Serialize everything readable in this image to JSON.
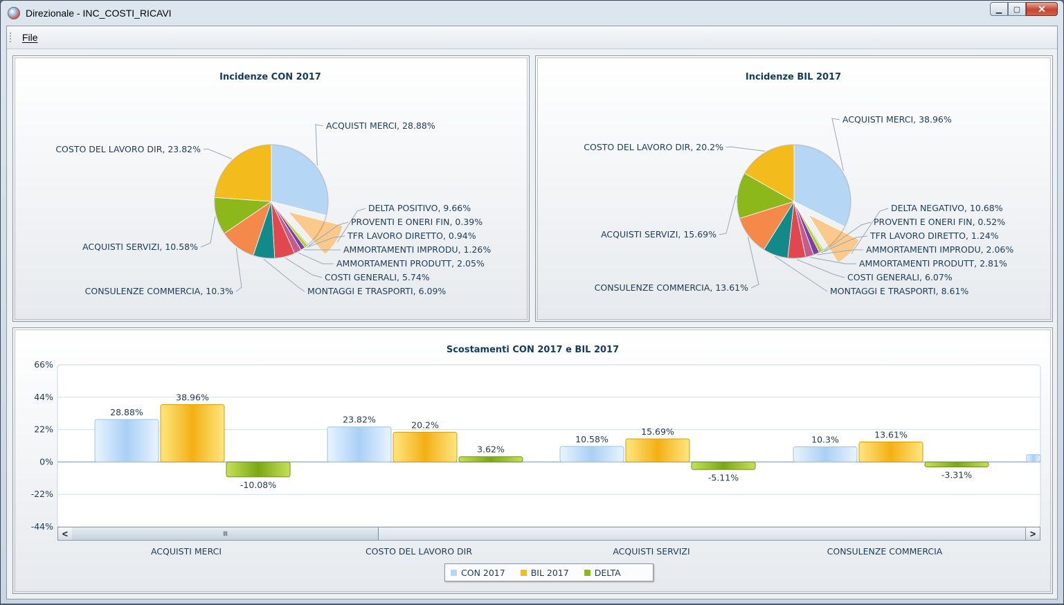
{
  "window": {
    "title": "Direzionale - INC_COSTI_RICAVI"
  },
  "menu": {
    "file": "File"
  },
  "pie_con": {
    "title": "Incidenze CON 2017",
    "slices": [
      {
        "label": "ACQUISTI MERCI, 28.88%",
        "value": 28.88,
        "color": "#b6d6f5"
      },
      {
        "label": "DELTA POSITIVO, 9.66%",
        "value": 9.66,
        "color": "#fcc98c"
      },
      {
        "label": "PROVENTI E ONERI FIN, 0.39%",
        "value": 0.39,
        "color": "#a9d08e"
      },
      {
        "label": "TFR LAVORO DIRETTO, 0.94%",
        "value": 0.94,
        "color": "#b6cf21"
      },
      {
        "label": "AMMORTAMENTI IMPRODU, 1.26%",
        "value": 1.26,
        "color": "#7b3fa8"
      },
      {
        "label": "AMMORTAMENTI PRODUTT, 2.05%",
        "value": 2.05,
        "color": "#c25c8a"
      },
      {
        "label": "COSTI GENERALI, 5.74%",
        "value": 5.74,
        "color": "#e0474e"
      },
      {
        "label": "MONTAGGI E TRASPORTI, 6.09%",
        "value": 6.09,
        "color": "#138a8a"
      },
      {
        "label": "CONSULENZE COMMERCIA, 10.3%",
        "value": 10.3,
        "color": "#f5894a"
      },
      {
        "label": "ACQUISTI SERVIZI, 10.58%",
        "value": 10.58,
        "color": "#8db81b"
      },
      {
        "label": "COSTO DEL LAVORO DIR, 23.82%",
        "value": 23.82,
        "color": "#f4bb1c"
      }
    ]
  },
  "pie_bil": {
    "title": "Incidenze BIL 2017",
    "slices": [
      {
        "label": "ACQUISTI MERCI, 38.96%",
        "value": 38.96,
        "color": "#b6d6f5"
      },
      {
        "label": "DELTA NEGATIVO, 10.68%",
        "value": 10.68,
        "color": "#fcc98c"
      },
      {
        "label": "PROVENTI E ONERI FIN, 0.52%",
        "value": 0.52,
        "color": "#a9d08e"
      },
      {
        "label": "TFR LAVORO DIRETTO, 1.24%",
        "value": 1.24,
        "color": "#b6cf21"
      },
      {
        "label": "AMMORTAMENTI IMPRODU, 2.06%",
        "value": 2.06,
        "color": "#7b3fa8"
      },
      {
        "label": "AMMORTAMENTI PRODUTT, 2.81%",
        "value": 2.81,
        "color": "#c25c8a"
      },
      {
        "label": "COSTI GENERALI, 6.07%",
        "value": 6.07,
        "color": "#e0474e"
      },
      {
        "label": "MONTAGGI E TRASPORTI, 8.61%",
        "value": 8.61,
        "color": "#138a8a"
      },
      {
        "label": "CONSULENZE COMMERCIA, 13.61%",
        "value": 13.61,
        "color": "#f5894a"
      },
      {
        "label": "ACQUISTI SERVIZI, 15.69%",
        "value": 15.69,
        "color": "#8db81b"
      },
      {
        "label": "COSTO DEL LAVORO DIR, 20.2%",
        "value": 20.2,
        "color": "#f4bb1c"
      }
    ]
  },
  "chart_data": [
    {
      "type": "pie",
      "title": "Incidenze CON 2017",
      "categories": [
        "ACQUISTI MERCI",
        "DELTA POSITIVO",
        "PROVENTI E ONERI FIN",
        "TFR LAVORO DIRETTO",
        "AMMORTAMENTI IMPRODU",
        "AMMORTAMENTI PRODUTT",
        "COSTI GENERALI",
        "MONTAGGI E TRASPORTI",
        "CONSULENZE COMMERCIA",
        "ACQUISTI SERVIZI",
        "COSTO DEL LAVORO DIR"
      ],
      "values": [
        28.88,
        9.66,
        0.39,
        0.94,
        1.26,
        2.05,
        5.74,
        6.09,
        10.3,
        10.58,
        23.82
      ]
    },
    {
      "type": "pie",
      "title": "Incidenze BIL 2017",
      "categories": [
        "ACQUISTI MERCI",
        "DELTA NEGATIVO",
        "PROVENTI E ONERI FIN",
        "TFR LAVORO DIRETTO",
        "AMMORTAMENTI IMPRODU",
        "AMMORTAMENTI PRODUTT",
        "COSTI GENERALI",
        "MONTAGGI E TRASPORTI",
        "CONSULENZE COMMERCIA",
        "ACQUISTI SERVIZI",
        "COSTO DEL LAVORO DIR"
      ],
      "values": [
        38.96,
        10.68,
        0.52,
        1.24,
        2.06,
        2.81,
        6.07,
        8.61,
        13.61,
        15.69,
        20.2
      ]
    },
    {
      "type": "bar",
      "title": "Scostamenti CON 2017 e BIL 2017",
      "categories": [
        "ACQUISTI MERCI",
        "COSTO DEL LAVORO DIR",
        "ACQUISTI SERVIZI",
        "CONSULENZE COMMERCIA"
      ],
      "series": [
        {
          "name": "CON 2017",
          "values": [
            28.88,
            23.82,
            10.58,
            10.3
          ],
          "labels": [
            "28.88%",
            "23.82%",
            "10.58%",
            "10.3%"
          ],
          "color": "#b6d6f5"
        },
        {
          "name": "BIL 2017",
          "values": [
            38.96,
            20.2,
            15.69,
            13.61
          ],
          "labels": [
            "38.96%",
            "20.2%",
            "15.69%",
            "13.61%"
          ],
          "color": "#f4bb1c"
        },
        {
          "name": "DELTA",
          "values": [
            -10.08,
            3.62,
            -5.11,
            -3.31
          ],
          "labels": [
            "-10.08%",
            "3.62%",
            "-5.11%",
            "-3.31%"
          ],
          "color": "#8db81b"
        }
      ],
      "ylim": [
        -44,
        66
      ],
      "yticks": [
        "66%",
        "44%",
        "22%",
        "0%",
        "-22%",
        "-44%"
      ],
      "grid": true,
      "legend_position": "bottom-center"
    }
  ],
  "scrollbar": {
    "left_arrow": "<",
    "right_arrow": ">",
    "grip": "IIII"
  }
}
